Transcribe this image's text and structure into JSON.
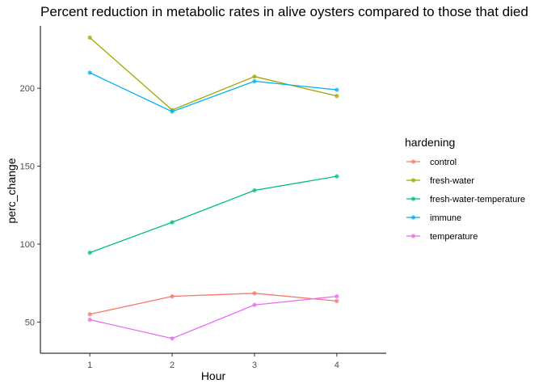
{
  "chart_data": {
    "type": "line",
    "title": "Percent reduction in metabolic rates in alive oysters compared to those that died",
    "xlabel": "Hour",
    "ylabel": "perc_change",
    "x": [
      1,
      2,
      3,
      4
    ],
    "xticks": [
      "1",
      "2",
      "3",
      "4"
    ],
    "xlim": [
      0.4,
      4.6
    ],
    "yticks": [
      "50",
      "100",
      "150",
      "200"
    ],
    "ytick_values": [
      50,
      100,
      150,
      200
    ],
    "ylim": [
      30,
      240
    ],
    "grid": false,
    "legend": {
      "title": "hardening",
      "position": "right"
    },
    "series": [
      {
        "name": "control",
        "color": "#F8766D",
        "values": [
          55,
          66.5,
          68.5,
          63.5
        ]
      },
      {
        "name": "fresh-water",
        "color": "#A3A500",
        "values": [
          232.5,
          186,
          207.5,
          195
        ]
      },
      {
        "name": "fresh-water-temperature",
        "color": "#00BF7D",
        "values": [
          94.5,
          114,
          134.5,
          143.5
        ]
      },
      {
        "name": "immune",
        "color": "#00B0F6",
        "values": [
          210,
          185,
          204.5,
          199
        ]
      },
      {
        "name": "temperature",
        "color": "#E76BF3",
        "values": [
          51.5,
          39.5,
          61,
          66.5
        ]
      }
    ]
  }
}
